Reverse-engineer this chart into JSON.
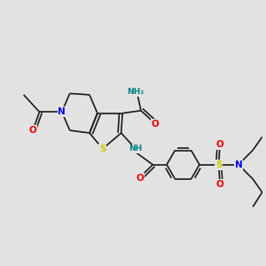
{
  "bg_color": "#e2e2e2",
  "bond_color": "#1a1a1a",
  "bond_width": 1.2,
  "atom_colors": {
    "N": "#0000ee",
    "O": "#ee0000",
    "S": "#cccc00",
    "NH": "#008080",
    "NH2": "#008080"
  },
  "font_size": 6.5
}
